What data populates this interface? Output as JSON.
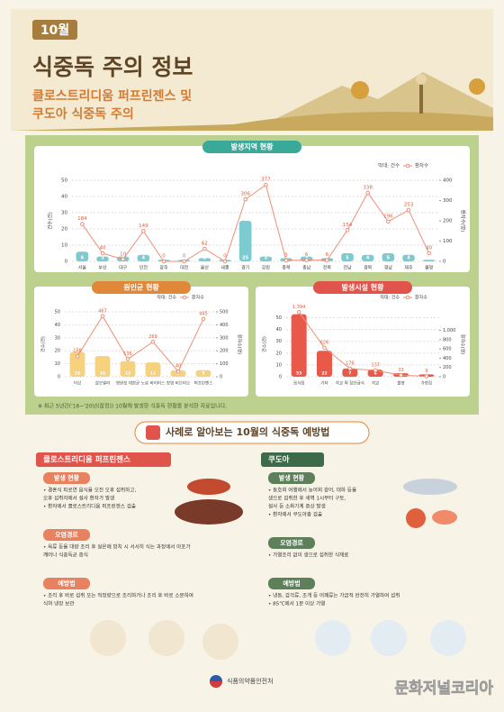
{
  "header": {
    "month": "10월",
    "title": "식중독 주의 정보",
    "subtitle": [
      "클로스트리디움 퍼프린젠스 및",
      "쿠도아 식중독 주의"
    ]
  },
  "charts": [
    {
      "type": "bar-line",
      "title": "발생지역 현황",
      "title_color": "#3aa99a",
      "categories": [
        "서울",
        "부산",
        "대구",
        "인천",
        "광주",
        "대전",
        "울산",
        "세종",
        "경기",
        "강원",
        "충북",
        "충남",
        "전북",
        "전남",
        "경북",
        "경남",
        "제주",
        "불명"
      ],
      "series": [
        {
          "name": "막대: 건수",
          "color": "#7ccbd0",
          "values": [
            6,
            3,
            3,
            4,
            1,
            1,
            2,
            1,
            25,
            3,
            2,
            3,
            2,
            5,
            4,
            5,
            4,
            1
          ]
        },
        {
          "name": "환자수",
          "color": "#ef8f76",
          "axis": "y2",
          "values": [
            184,
            40,
            10,
            149,
            0,
            0,
            62,
            0,
            306,
            377,
            5,
            6,
            6,
            154,
            338,
            196,
            253,
            40
          ]
        }
      ],
      "y_label": "건수(건)",
      "y2_label": "환자수(명)",
      "ylim": [
        0,
        50
      ],
      "yticks": [
        0,
        10,
        20,
        30,
        40,
        50
      ],
      "y2lim": [
        0,
        400
      ],
      "y2ticks": [
        0,
        100,
        200,
        300,
        400
      ]
    },
    {
      "type": "bar-line",
      "title": "원인균 현황",
      "title_color": "#e0873a",
      "categories": [
        "미상",
        "살모넬라",
        "병원성 대장균",
        "노로 바이러스",
        "장염 비브리오",
        "퍼프린젠스"
      ],
      "series": [
        {
          "name": "막대: 건수",
          "color": "#f6d27f",
          "values": [
            19,
            16,
            12,
            11,
            5,
            5
          ]
        },
        {
          "name": "환자수",
          "color": "#ef8f76",
          "axis": "y2",
          "values": [
            158,
            467,
            136,
            269,
            40,
            445
          ]
        }
      ],
      "y_label": "건수(건)",
      "y2_label": "환자수(명)",
      "ylim": [
        0,
        50
      ],
      "yticks": [
        0,
        10,
        20,
        30,
        40,
        50
      ],
      "y2lim": [
        0,
        500
      ],
      "y2ticks": [
        0,
        100,
        200,
        300,
        400,
        500
      ]
    },
    {
      "type": "bar-line",
      "title": "발생시설 현황",
      "title_color": "#e0544b",
      "categories": [
        "음식점",
        "기타",
        "학교 외 집단급식",
        "학교",
        "불명",
        "가정집"
      ],
      "series": [
        {
          "name": "막대: 건수",
          "color": "#e8594a",
          "values": [
            53,
            22,
            7,
            6,
            3,
            2
          ]
        },
        {
          "name": "환자수",
          "color": "#ef8f76",
          "axis": "y2",
          "values": [
            1394,
            626,
            176,
            137,
            33,
            9
          ],
          "value_labels": [
            "1,394",
            "626",
            "176",
            "137",
            "33",
            "9"
          ]
        }
      ],
      "y_label": "건수(건)",
      "y2_label": "환자수(명)",
      "ylim": [
        0,
        55
      ],
      "yticks": [
        0,
        10,
        20,
        30,
        40,
        50
      ],
      "y2lim": [
        0,
        1400
      ],
      "y2ticks": [
        0,
        200,
        400,
        600,
        800,
        {
          "value": 1000,
          "label": "1,000"
        }
      ]
    }
  ],
  "note": "※ 최근 5년간('16~'20년(잠정)) 10월에 발생한 식중독 현황을 분석한 자료입니다.",
  "section_title": "사례로 알아보는 10월의 식중독 예방법",
  "columns": [
    {
      "title": "클로스트리디움 퍼프린젠스",
      "blocks": [
        {
          "heading": "발생 현황",
          "lines": [
            "• 결혼식 피로연 음식을 오전 오후 섭취하고,",
            "  오후 섭취자에서 설사 환자가 발생",
            "• 환자에서 클로스트리디움 퍼프린젠스 검출"
          ]
        },
        {
          "heading": "오염경로",
          "lines": [
            "• 육류 등을 대량 조리 후 실온에 방치 시 서서히 식는 과정에서 아포가",
            "  깨어나 식중독균 증식"
          ]
        },
        {
          "heading": "예방법",
          "lines": [
            "• 조리 후 바로 섭취 또는 적정량으로 조리하거나 조리 후 바로 소분하여",
            "  식혀 냉장 보관"
          ]
        }
      ]
    },
    {
      "title": "쿠도아",
      "blocks": [
        {
          "heading": "발생 현황",
          "lines": [
            "• 동호회 여행에서 농어회 광어, 대하 등을",
            "  생으로 섭취한 후 새벽 1시부터 구토,",
            "  설사 등 소화기계 증상 발생",
            "• 환자에서 쿠도아충 검출"
          ]
        },
        {
          "heading": "오염경로",
          "lines": [
            "• 가열조리 없이 생으로 섭취한 식재료"
          ]
        },
        {
          "heading": "예방법",
          "lines": [
            "• 냉동, 갑각류, 조개 등 어패류는 가급적 완전히 가열하여 섭취",
            "• 85℃에서 1분 이상 가열"
          ]
        }
      ]
    }
  ],
  "footer": "식품의약품안전처",
  "watermark": "문화저널코리아"
}
